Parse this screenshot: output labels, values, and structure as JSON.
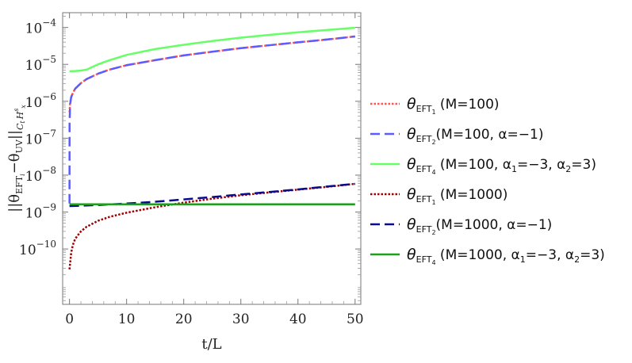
{
  "chart_data": {
    "type": "line",
    "xlabel": "t/L",
    "ylabel": "||θ_EFT_i − θ_UV||_{C_t H^s_x}",
    "ylabel_parts": {
      "norm_open": "||θ",
      "sub1": "EFT",
      "sub1_i": "i",
      "minus": "−θ",
      "sub2": "UV",
      "norm_close": "||",
      "space_C": "C",
      "space_t": "t",
      "space_H": "H",
      "space_s": "s",
      "space_x": "x"
    },
    "xlim": [
      -1.2,
      51
    ],
    "ylim_log10": [
      -11.5,
      -3.6
    ],
    "y_scale": "log",
    "x_ticks": [
      0,
      10,
      20,
      30,
      40,
      50
    ],
    "x_tick_labels": [
      "0",
      "10",
      "20",
      "30",
      "40",
      "50"
    ],
    "y_ticks": [
      {
        "exp": -4,
        "base": "10",
        "sup": "−4"
      },
      {
        "exp": -5,
        "base": "10",
        "sup": "−5"
      },
      {
        "exp": -6,
        "base": "10",
        "sup": "−6"
      },
      {
        "exp": -7,
        "base": "10",
        "sup": "−7"
      },
      {
        "exp": -8,
        "base": "10",
        "sup": "−8"
      },
      {
        "exp": -9,
        "base": "10",
        "sup": "−9"
      },
      {
        "exp": -10,
        "base": "10",
        "sup": "−10"
      }
    ],
    "legend_position": "right",
    "series": [
      {
        "legend_main": "θ",
        "legend_sub": "EFT",
        "legend_subsub": "1",
        "legend_text": " (M=100)",
        "color": "#ff5555",
        "dash": "dotted",
        "width": 2.5,
        "points": [
          [
            0.01,
            5e-07
          ],
          [
            0.1,
            9e-07
          ],
          [
            0.3,
            1.3e-06
          ],
          [
            0.6,
            1.7e-06
          ],
          [
            1,
            2.2e-06
          ],
          [
            2,
            3.1e-06
          ],
          [
            3,
            4e-06
          ],
          [
            5,
            5.6e-06
          ],
          [
            7,
            7.2e-06
          ],
          [
            10,
            9.5e-06
          ],
          [
            15,
            1.3e-05
          ],
          [
            20,
            1.75e-05
          ],
          [
            25,
            2.2e-05
          ],
          [
            30,
            2.75e-05
          ],
          [
            35,
            3.3e-05
          ],
          [
            40,
            3.95e-05
          ],
          [
            45,
            4.7e-05
          ],
          [
            50,
            5.7e-05
          ]
        ]
      },
      {
        "legend_main": "θ",
        "legend_sub": "EFT",
        "legend_subsub": "2",
        "legend_text": "(M=100, α=−1)",
        "color": "#5b5bff",
        "dash": "dashed",
        "width": 2.5,
        "points": [
          [
            0,
            1.7e-09
          ],
          [
            0.01,
            2.5e-07
          ],
          [
            0.1,
            8e-07
          ],
          [
            0.3,
            1.3e-06
          ],
          [
            0.6,
            1.7e-06
          ],
          [
            1,
            2.2e-06
          ],
          [
            2,
            3.1e-06
          ],
          [
            3,
            4e-06
          ],
          [
            5,
            5.6e-06
          ],
          [
            7,
            7.2e-06
          ],
          [
            10,
            9.5e-06
          ],
          [
            15,
            1.3e-05
          ],
          [
            20,
            1.75e-05
          ],
          [
            25,
            2.2e-05
          ],
          [
            30,
            2.75e-05
          ],
          [
            35,
            3.3e-05
          ],
          [
            40,
            3.95e-05
          ],
          [
            45,
            4.7e-05
          ],
          [
            50,
            5.7e-05
          ]
        ]
      },
      {
        "legend_main": "θ",
        "legend_sub": "EFT",
        "legend_subsub": "4",
        "legend_text": " (M=100, α",
        "legend_a1": "1",
        "legend_mid": "=−3, α",
        "legend_a2": "2",
        "legend_end": "=3)",
        "color": "#66ff66",
        "dash": "solid",
        "width": 2.5,
        "points": [
          [
            0,
            6.5e-06
          ],
          [
            1,
            6.6e-06
          ],
          [
            2,
            6.8e-06
          ],
          [
            3,
            7.2e-06
          ],
          [
            4,
            8.5e-06
          ],
          [
            5,
            1e-05
          ],
          [
            7,
            1.3e-05
          ],
          [
            10,
            1.8e-05
          ],
          [
            15,
            2.6e-05
          ],
          [
            20,
            3.4e-05
          ],
          [
            25,
            4.3e-05
          ],
          [
            30,
            5.3e-05
          ],
          [
            35,
            6.3e-05
          ],
          [
            40,
            7.4e-05
          ],
          [
            45,
            8.5e-05
          ],
          [
            50,
            9.8e-05
          ]
        ]
      },
      {
        "legend_main": "θ",
        "legend_sub": "EFT",
        "legend_subsub": "1",
        "legend_text": " (M=1000)",
        "color": "#a00000",
        "dash": "dotted",
        "width": 2.5,
        "points": [
          [
            0,
            2.8e-11
          ],
          [
            0.3,
            8e-11
          ],
          [
            0.6,
            1.3e-10
          ],
          [
            1,
            1.9e-10
          ],
          [
            2,
            3e-10
          ],
          [
            3,
            4e-10
          ],
          [
            5,
            5.8e-10
          ],
          [
            7,
            7.4e-10
          ],
          [
            10,
            9.6e-10
          ],
          [
            15,
            1.35e-09
          ],
          [
            20,
            1.8e-09
          ],
          [
            25,
            2.3e-09
          ],
          [
            30,
            2.85e-09
          ],
          [
            35,
            3.4e-09
          ],
          [
            40,
            4.05e-09
          ],
          [
            45,
            4.8e-09
          ],
          [
            50,
            5.8e-09
          ]
        ]
      },
      {
        "legend_main": "θ",
        "legend_sub": "EFT",
        "legend_subsub": "2",
        "legend_text": "(M=1000, α=−1)",
        "color": "#0a0a8c",
        "dash": "dashed",
        "width": 2.5,
        "points": [
          [
            0,
            1.45e-09
          ],
          [
            5,
            1.55e-09
          ],
          [
            10,
            1.7e-09
          ],
          [
            15,
            1.9e-09
          ],
          [
            20,
            2.2e-09
          ],
          [
            25,
            2.55e-09
          ],
          [
            30,
            3e-09
          ],
          [
            35,
            3.5e-09
          ],
          [
            40,
            4.1e-09
          ],
          [
            45,
            4.9e-09
          ],
          [
            50,
            5.8e-09
          ]
        ]
      },
      {
        "legend_main": "θ",
        "legend_sub": "EFT",
        "legend_subsub": "4",
        "legend_text": " (M=1000, α",
        "legend_a1": "1",
        "legend_mid": "=−3, α",
        "legend_a2": "2",
        "legend_end": "=3)",
        "color": "#1aa01a",
        "dash": "solid",
        "width": 2.5,
        "points": [
          [
            0,
            1.62e-09
          ],
          [
            10,
            1.62e-09
          ],
          [
            20,
            1.62e-09
          ],
          [
            30,
            1.62e-09
          ],
          [
            40,
            1.62e-09
          ],
          [
            50,
            1.62e-09
          ]
        ]
      }
    ]
  }
}
